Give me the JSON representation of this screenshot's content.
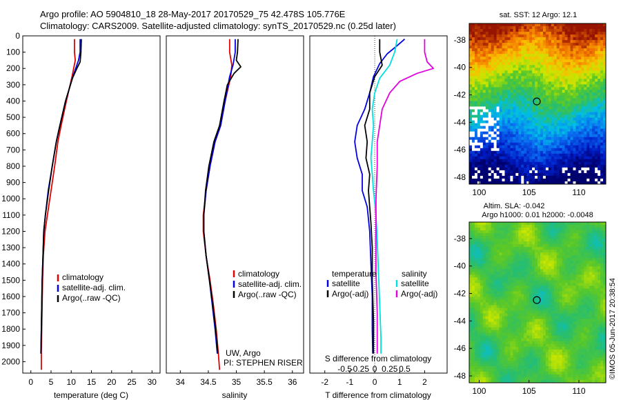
{
  "header": {
    "line1": "Argo profile: AO 5904810_18 28-May-2017 20170529_75 42.478S 105.776E",
    "line2": "Climatology: CARS2009. Satellite-adjusted climatology: synTS_20170529.nc (0.25d later)"
  },
  "credits": {
    "institution": "UW, Argo",
    "pi": "PI: STEPHEN RISER"
  },
  "copyright": "©IMOS 05-Jun-2017 20:38:54",
  "colors": {
    "climatology": "#e00000",
    "satellite": "#0000e0",
    "argo": "#000000",
    "sat_salinity": "#00e0e0",
    "argo_salinity": "#e000e0"
  },
  "chart_data": [
    {
      "type": "line",
      "xlabel": "temperature (deg C)",
      "ylabel": "",
      "xlim": [
        -2,
        32
      ],
      "ylim": [
        2070,
        0
      ],
      "xticks": [
        0,
        5,
        10,
        15,
        20,
        25,
        30
      ],
      "yticks": [
        0,
        100,
        200,
        300,
        400,
        500,
        600,
        700,
        800,
        900,
        1000,
        1100,
        1200,
        1300,
        1400,
        1500,
        1600,
        1700,
        1800,
        1900,
        2000
      ],
      "legend": [
        "climatology",
        "satellite-adj. clim.",
        "Argo(..raw -QC)"
      ],
      "series": [
        {
          "name": "climatology",
          "color": "#e00000",
          "x": [
            10.8,
            10.8,
            11.0,
            10.2,
            8.8,
            7.5,
            6.7,
            5.9,
            5.0,
            4.1,
            3.5,
            3.1,
            2.9,
            2.8,
            2.7,
            2.6,
            2.6
          ],
          "y": [
            20,
            100,
            150,
            250,
            400,
            550,
            650,
            800,
            950,
            1100,
            1200,
            1350,
            1500,
            1650,
            1800,
            1950,
            2050
          ]
        },
        {
          "name": "satellite-adj. clim.",
          "color": "#0000e0",
          "x": [
            12.2,
            12.2,
            11.8,
            10.4,
            8.6,
            7.2,
            6.3,
            5.3,
            4.3,
            3.6,
            3.2,
            3.0,
            2.8,
            2.7,
            2.6,
            2.5
          ],
          "y": [
            20,
            100,
            150,
            250,
            400,
            550,
            650,
            800,
            950,
            1100,
            1200,
            1350,
            1500,
            1650,
            1800,
            1950
          ]
        },
        {
          "name": "Argo(..raw -QC)",
          "color": "#000000",
          "x": [
            12.5,
            12.4,
            12.2,
            11.4,
            10.3,
            8.6,
            7.2,
            6.3,
            5.3,
            4.4,
            3.6,
            3.2,
            3.0,
            2.8,
            2.7,
            2.6,
            2.5
          ],
          "y": [
            20,
            100,
            160,
            200,
            260,
            400,
            550,
            650,
            800,
            950,
            1100,
            1200,
            1350,
            1500,
            1650,
            1800,
            1950
          ]
        }
      ]
    },
    {
      "type": "line",
      "xlabel": "salinity",
      "ylabel": "",
      "xlim": [
        33.75,
        36.2
      ],
      "ylim": [
        2070,
        0
      ],
      "xticks": [
        34,
        34.5,
        35,
        35.5,
        36
      ],
      "xticklabels": [
        "34",
        "34.5",
        "35",
        "35.5",
        "36"
      ],
      "legend": [
        "climatology",
        "satellite-adj. clim.",
        "Argo(..raw -QC)"
      ],
      "series": [
        {
          "name": "climatology",
          "color": "#e00000",
          "x": [
            34.88,
            34.88,
            34.92,
            34.9,
            34.8,
            34.72,
            34.62,
            34.53,
            34.46,
            34.41,
            34.41,
            34.46,
            34.53,
            34.59,
            34.64,
            34.68,
            34.7
          ],
          "y": [
            20,
            100,
            180,
            250,
            400,
            550,
            650,
            800,
            950,
            1100,
            1200,
            1350,
            1500,
            1650,
            1800,
            1950,
            2050
          ]
        },
        {
          "name": "satellite-adj. clim.",
          "color": "#0000e0",
          "x": [
            34.98,
            34.98,
            34.94,
            34.88,
            34.8,
            34.72,
            34.62,
            34.53,
            34.46,
            34.42,
            34.42,
            34.46,
            34.52,
            34.57,
            34.62,
            34.66
          ],
          "y": [
            20,
            100,
            180,
            250,
            400,
            550,
            650,
            800,
            950,
            1100,
            1200,
            1350,
            1500,
            1650,
            1800,
            1950
          ]
        },
        {
          "name": "Argo(..raw -QC)",
          "color": "#000000",
          "x": [
            35.03,
            35.02,
            35.0,
            35.08,
            34.96,
            34.84,
            34.78,
            34.7,
            34.6,
            34.51,
            34.45,
            34.42,
            34.42,
            34.46,
            34.52,
            34.58,
            34.63,
            34.67
          ],
          "y": [
            20,
            100,
            150,
            190,
            230,
            300,
            400,
            550,
            650,
            800,
            950,
            1100,
            1200,
            1350,
            1500,
            1650,
            1800,
            1950
          ]
        }
      ]
    },
    {
      "type": "line",
      "xlabel": "T difference from climatology",
      "x2label": "S difference from climatology",
      "ylabel": "",
      "xlim": [
        -2.6,
        2.9
      ],
      "ylim": [
        2070,
        0
      ],
      "xticks": [
        -2,
        -1,
        0,
        1,
        2
      ],
      "s_ticks": [
        -0.5,
        -0.25,
        0,
        0.25,
        0.5
      ],
      "s_ticklabels": [
        "-0.5",
        "-0.25",
        "0",
        "0.25",
        "0.5"
      ],
      "legend_headers": [
        "temperature",
        "salinity"
      ],
      "legend": [
        "satellite",
        "Argo(-adj)",
        "satellite",
        "Argo(-adj)"
      ],
      "series": [
        {
          "name": "satellite",
          "color": "#0000e0",
          "x": [
            1.2,
            0.9,
            0.5,
            0.2,
            -0.05,
            -0.2,
            -0.4,
            -0.7,
            -0.8,
            -0.7,
            -0.5,
            -0.5,
            -0.3,
            -0.2,
            -0.15,
            -0.1,
            -0.1,
            -0.08
          ],
          "y": [
            20,
            60,
            110,
            170,
            250,
            350,
            450,
            550,
            650,
            750,
            850,
            950,
            1050,
            1200,
            1400,
            1600,
            1800,
            1950
          ]
        },
        {
          "name": "Argo(-adj)",
          "color": "#000000",
          "x": [
            0.2,
            0.2,
            0.3,
            0.0,
            -0.2,
            -0.2,
            -0.4,
            -0.3,
            -0.35,
            -0.2,
            -0.25,
            -0.2,
            -0.15,
            -0.1,
            -0.1,
            -0.05,
            -0.05
          ],
          "y": [
            20,
            100,
            180,
            250,
            350,
            450,
            550,
            650,
            750,
            850,
            950,
            1050,
            1150,
            1300,
            1500,
            1750,
            1950
          ]
        },
        {
          "name": "satellite",
          "color": "#00e0e0",
          "x": [
            0.9,
            0.8,
            0.6,
            0.2,
            0.0,
            -0.1,
            -0.05,
            -0.1,
            -0.15,
            -0.1,
            -0.05,
            0.05,
            0.1,
            0.15,
            0.2,
            0.25,
            0.25
          ],
          "y": [
            20,
            100,
            180,
            260,
            350,
            450,
            550,
            650,
            750,
            850,
            950,
            1100,
            1250,
            1450,
            1650,
            1850,
            1950
          ]
        },
        {
          "name": "Argo(-adj)",
          "color": "#e000e0",
          "x": [
            2.0,
            2.0,
            2.0,
            2.1,
            2.35,
            1.7,
            1.0,
            0.6,
            0.3,
            0.2,
            0.1,
            0.1,
            0.05,
            0.05,
            0.05,
            0.1,
            0.1
          ],
          "y": [
            20,
            60,
            100,
            160,
            200,
            230,
            280,
            350,
            450,
            550,
            650,
            800,
            1000,
            1200,
            1450,
            1700,
            1950
          ]
        }
      ]
    },
    {
      "type": "heatmap",
      "title": "sat. SST: 12  Argo: 12.1",
      "xlim": [
        99,
        112.7
      ],
      "ylim": [
        -48.5,
        -36.8
      ],
      "xticks": [
        100,
        105,
        110
      ],
      "yticks": [
        -38,
        -40,
        -42,
        -44,
        -46,
        -48
      ],
      "marker": {
        "x": 105.78,
        "y": -42.48
      }
    },
    {
      "type": "heatmap",
      "title": "Altim. SLA: -0.042",
      "subtitle": "Argo h1000: 0.01  h2000: -0.0048",
      "xlim": [
        99,
        112.7
      ],
      "ylim": [
        -48.5,
        -36.8
      ],
      "xticks": [
        100,
        105,
        110
      ],
      "yticks": [
        -38,
        -40,
        -42,
        -44,
        -46,
        -48
      ],
      "marker": {
        "x": 105.78,
        "y": -42.48
      }
    }
  ]
}
